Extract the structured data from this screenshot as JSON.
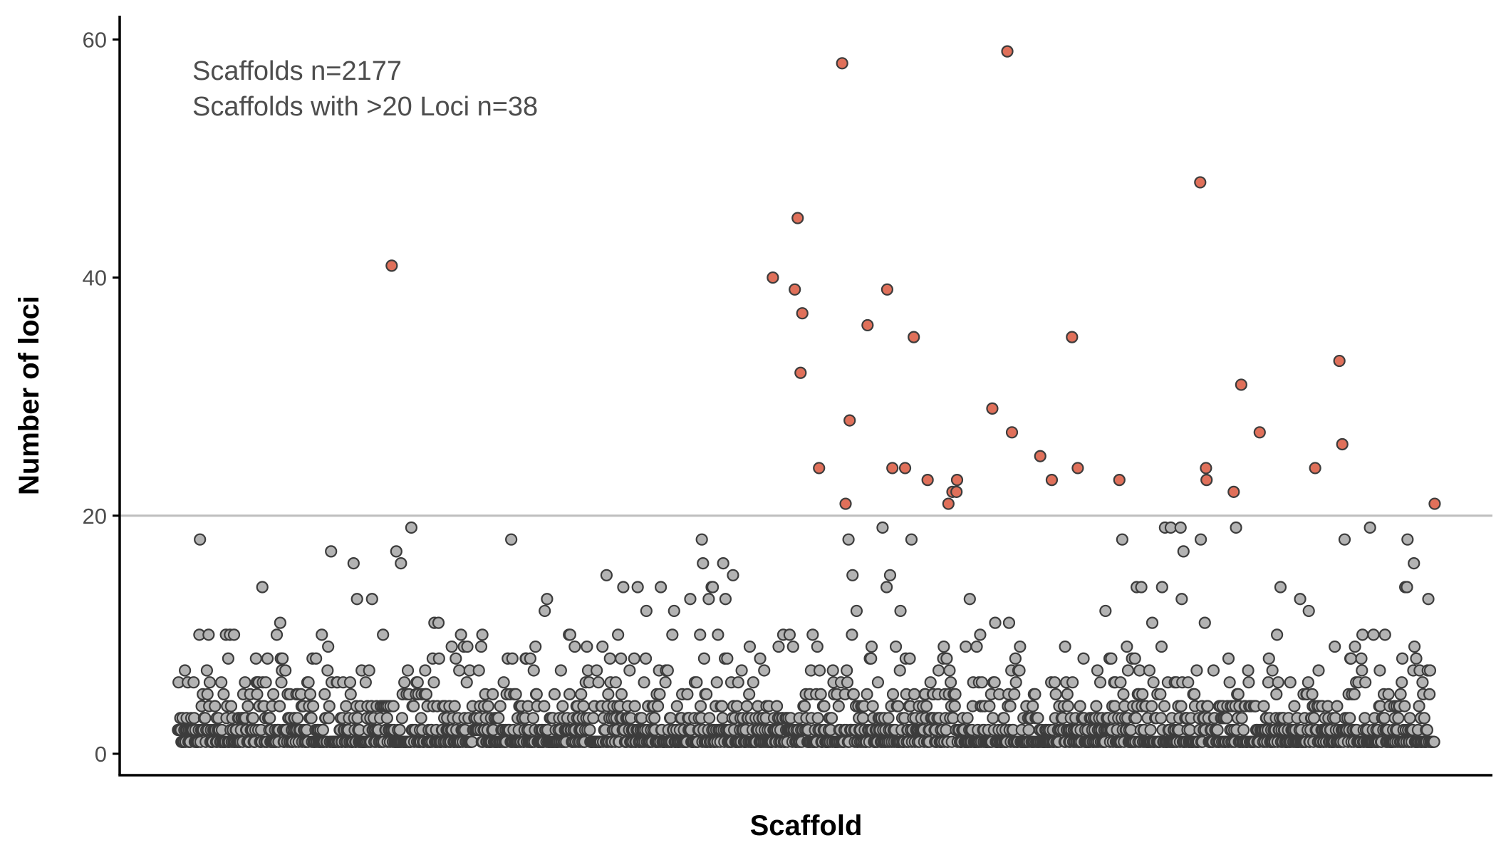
{
  "chart_data": {
    "type": "scatter",
    "xlabel": "Scaffold",
    "ylabel": "Number of loci",
    "ylim": [
      -1.8,
      62
    ],
    "yticks": [
      0,
      20,
      40,
      60
    ],
    "threshold": 20,
    "grid": false,
    "annotations": [
      "Scaffolds n=2177",
      "Scaffolds with >20 Loci n=38"
    ],
    "colors": {
      "below_threshold": "#b3b3b3",
      "above_threshold": "#e0705a",
      "threshold_line": "#bebebe",
      "marker_edge": "#3c3c3c",
      "axis": "#000000"
    },
    "series": [
      {
        "values_above_threshold": [
          {
            "x": 371,
            "y": 41
          },
          {
            "x": 1031,
            "y": 40
          },
          {
            "x": 1069,
            "y": 39
          },
          {
            "x": 1074,
            "y": 45
          },
          {
            "x": 1079,
            "y": 32
          },
          {
            "x": 1082,
            "y": 37
          },
          {
            "x": 1111,
            "y": 24
          },
          {
            "x": 1151,
            "y": 58
          },
          {
            "x": 1157,
            "y": 21
          },
          {
            "x": 1164,
            "y": 28
          },
          {
            "x": 1195,
            "y": 36
          },
          {
            "x": 1229,
            "y": 39
          },
          {
            "x": 1238,
            "y": 24
          },
          {
            "x": 1260,
            "y": 24
          },
          {
            "x": 1275,
            "y": 35
          },
          {
            "x": 1299,
            "y": 23
          },
          {
            "x": 1335,
            "y": 21
          },
          {
            "x": 1342,
            "y": 22
          },
          {
            "x": 1349,
            "y": 22
          },
          {
            "x": 1350,
            "y": 23
          },
          {
            "x": 1411,
            "y": 29
          },
          {
            "x": 1437,
            "y": 59
          },
          {
            "x": 1445,
            "y": 27
          },
          {
            "x": 1494,
            "y": 25
          },
          {
            "x": 1514,
            "y": 23
          },
          {
            "x": 1549,
            "y": 35
          },
          {
            "x": 1559,
            "y": 24
          },
          {
            "x": 1631,
            "y": 23
          },
          {
            "x": 1771,
            "y": 48
          },
          {
            "x": 1781,
            "y": 24
          },
          {
            "x": 1782,
            "y": 23
          },
          {
            "x": 1829,
            "y": 22
          },
          {
            "x": 1842,
            "y": 31
          },
          {
            "x": 1874,
            "y": 27
          },
          {
            "x": 1970,
            "y": 24
          },
          {
            "x": 2012,
            "y": 33
          },
          {
            "x": 2017,
            "y": 26
          },
          {
            "x": 2177,
            "y": 21
          }
        ]
      }
    ]
  }
}
